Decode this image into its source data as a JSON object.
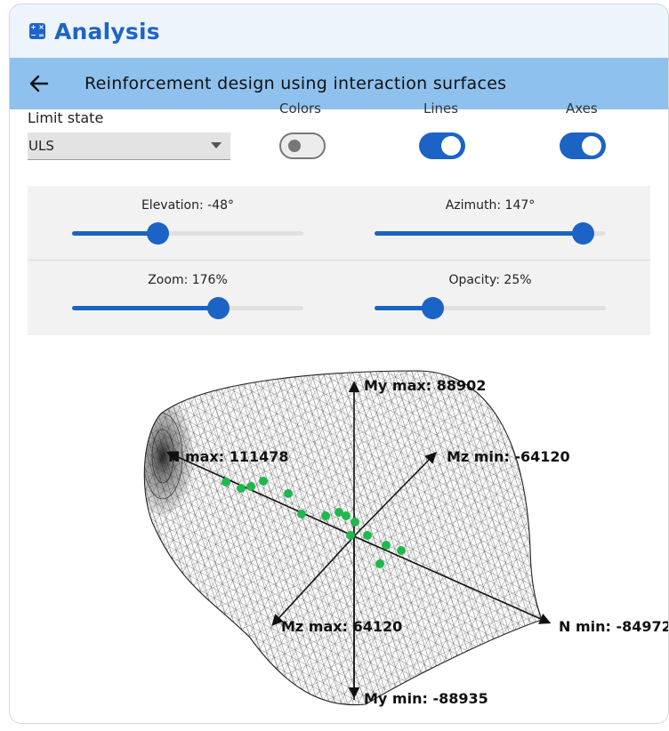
{
  "app": {
    "title": "Analysis"
  },
  "header": {
    "title": "Reinforcement design using interaction surfaces"
  },
  "controls": {
    "limit_state_label": "Limit state",
    "limit_state_value": "ULS",
    "toggles": [
      {
        "label": "Colors",
        "on": false
      },
      {
        "label": "Lines",
        "on": true
      },
      {
        "label": "Axes",
        "on": true
      }
    ]
  },
  "sliders": {
    "elevation": {
      "label": "Elevation: -48°",
      "fraction": 0.37
    },
    "azimuth": {
      "label": "Azimuth: 147°",
      "fraction": 0.9
    },
    "zoom": {
      "label": "Zoom: 176%",
      "fraction": 0.63
    },
    "opacity": {
      "label": "Opacity: 25%",
      "fraction": 0.25
    }
  },
  "plot": {
    "axes": {
      "my_max": "My max: 88902",
      "my_min": "My min: -88935",
      "n_max": "N max: 111478",
      "n_min": "N min: -84972",
      "mz_max": "Mz max: 64120",
      "mz_min": "Mz min: -64120"
    },
    "point_color": "#1fb84e",
    "mesh_color": "#1a1a1a"
  },
  "colors": {
    "accent": "#1b63c4",
    "header_bg": "#8ec1ee",
    "titlebar_bg": "#eef4fb"
  }
}
